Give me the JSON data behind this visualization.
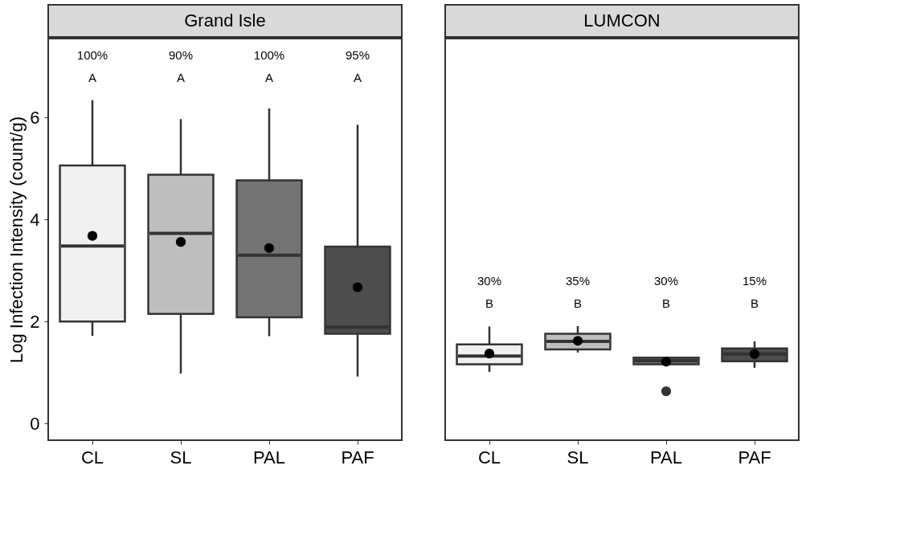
{
  "chart_data": [
    {
      "type": "box",
      "title": "Grand Isle",
      "ylabel": "Log Infection Intensity (count/g)",
      "categories": [
        "CL",
        "SL",
        "PAL",
        "PAF"
      ],
      "boxes": [
        {
          "low": 1.72,
          "q1": 2.0,
          "median": 3.48,
          "q3": 5.06,
          "high": 6.34,
          "mean": 3.68
        },
        {
          "low": 0.98,
          "q1": 2.15,
          "median": 3.73,
          "q3": 4.88,
          "high": 5.97,
          "mean": 3.56
        },
        {
          "low": 1.71,
          "q1": 2.08,
          "median": 3.3,
          "q3": 4.77,
          "high": 6.18,
          "mean": 3.44
        },
        {
          "low": 0.92,
          "q1": 1.76,
          "median": 1.89,
          "q3": 3.47,
          "high": 5.86,
          "mean": 2.67
        }
      ],
      "colors": [
        "#f0f0f0",
        "#bebebe",
        "#737373",
        "#4d4d4d"
      ],
      "ylim": [
        -0.33,
        7.55
      ],
      "yticks": [
        0,
        2,
        4,
        6
      ],
      "grid": false,
      "annotations": [
        "100%",
        "90%",
        "100%",
        "95%",
        "A",
        "A",
        "A",
        "A"
      ]
    },
    {
      "type": "box",
      "title": "LUMCON",
      "categories": [
        "CL",
        "SL",
        "PAL",
        "PAF"
      ],
      "boxes": [
        {
          "low": 1.01,
          "q1": 1.16,
          "median": 1.32,
          "q3": 1.55,
          "high": 1.9,
          "mean": 1.37
        },
        {
          "low": 1.39,
          "q1": 1.45,
          "median": 1.61,
          "q3": 1.76,
          "high": 1.91,
          "mean": 1.62
        },
        {
          "low": 1.16,
          "q1": 1.16,
          "median": 1.23,
          "q3": 1.29,
          "high": 1.29,
          "mean": 1.21,
          "outliers": [
            0.63
          ]
        },
        {
          "low": 1.09,
          "q1": 1.22,
          "median": 1.36,
          "q3": 1.47,
          "high": 1.61,
          "mean": 1.36
        }
      ],
      "colors": [
        "#f0f0f0",
        "#bebebe",
        "#737373",
        "#4d4d4d"
      ],
      "ylim": [
        -0.33,
        7.55
      ],
      "tick_labels": "x",
      "grid": false,
      "annotations": [
        "30%",
        "35%",
        "30%",
        "15%",
        "B",
        "B",
        "B",
        "B"
      ]
    }
  ]
}
